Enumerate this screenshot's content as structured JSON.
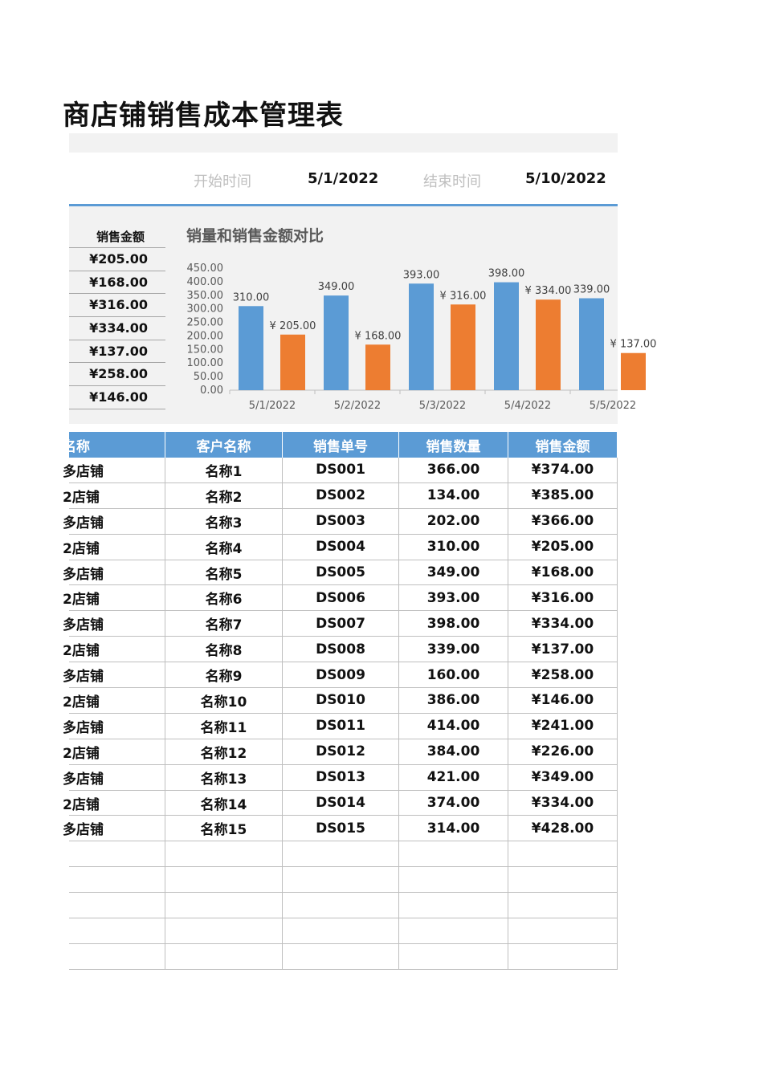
{
  "title": "商店铺销售成本管理表",
  "date_range": {
    "start_label": "开始时间",
    "start_value": "5/1/2022",
    "end_label": "结束时间",
    "end_value": "5/10/2022"
  },
  "side_list": {
    "header": "销售金额",
    "values": [
      "¥205.00",
      "¥168.00",
      "¥316.00",
      "¥334.00",
      "¥137.00",
      "¥258.00",
      "¥146.00"
    ]
  },
  "chart_data": {
    "type": "bar",
    "title": "销量和销售金额对比",
    "categories": [
      "5/1/2022",
      "5/2/2022",
      "5/3/2022",
      "5/4/2022",
      "5/5/2022"
    ],
    "series": [
      {
        "values": [
          310,
          349,
          393,
          398,
          339
        ],
        "labels": [
          "310.00",
          "349.00",
          "393.00",
          "398.00",
          "339.00"
        ],
        "color": "#5b9bd5"
      },
      {
        "values": [
          205,
          168,
          316,
          334,
          137
        ],
        "labels": [
          "¥ 205.00",
          "¥ 168.00",
          "¥ 316.00",
          "¥ 334.00",
          "¥ 137.00"
        ],
        "color": "#ed7d31"
      }
    ],
    "yticks": [
      "0.00",
      "50.00",
      "100.00",
      "150.00",
      "200.00",
      "250.00",
      "300.00",
      "350.00",
      "400.00",
      "450.00"
    ],
    "ylim": [
      0,
      450
    ],
    "legend": "none",
    "grid": false
  },
  "table": {
    "headers": [
      "名称",
      "客户名称",
      "销售单号",
      "销售数量",
      "销售金额"
    ],
    "rows": [
      [
        "多店铺",
        "名称1",
        "DS001",
        "366.00",
        "¥374.00"
      ],
      [
        "2店铺",
        "名称2",
        "DS002",
        "134.00",
        "¥385.00"
      ],
      [
        "多店铺",
        "名称3",
        "DS003",
        "202.00",
        "¥366.00"
      ],
      [
        "2店铺",
        "名称4",
        "DS004",
        "310.00",
        "¥205.00"
      ],
      [
        "多店铺",
        "名称5",
        "DS005",
        "349.00",
        "¥168.00"
      ],
      [
        "2店铺",
        "名称6",
        "DS006",
        "393.00",
        "¥316.00"
      ],
      [
        "多店铺",
        "名称7",
        "DS007",
        "398.00",
        "¥334.00"
      ],
      [
        "2店铺",
        "名称8",
        "DS008",
        "339.00",
        "¥137.00"
      ],
      [
        "多店铺",
        "名称9",
        "DS009",
        "160.00",
        "¥258.00"
      ],
      [
        "2店铺",
        "名称10",
        "DS010",
        "386.00",
        "¥146.00"
      ],
      [
        "多店铺",
        "名称11",
        "DS011",
        "414.00",
        "¥241.00"
      ],
      [
        "2店铺",
        "名称12",
        "DS012",
        "384.00",
        "¥226.00"
      ],
      [
        "多店铺",
        "名称13",
        "DS013",
        "421.00",
        "¥349.00"
      ],
      [
        "2店铺",
        "名称14",
        "DS014",
        "374.00",
        "¥334.00"
      ],
      [
        "多店铺",
        "名称15",
        "DS015",
        "314.00",
        "¥428.00"
      ],
      [
        "",
        "",
        "",
        "",
        ""
      ],
      [
        "",
        "",
        "",
        "",
        ""
      ],
      [
        "",
        "",
        "",
        "",
        ""
      ],
      [
        "",
        "",
        "",
        "",
        ""
      ],
      [
        "",
        "",
        "",
        "",
        ""
      ]
    ]
  }
}
